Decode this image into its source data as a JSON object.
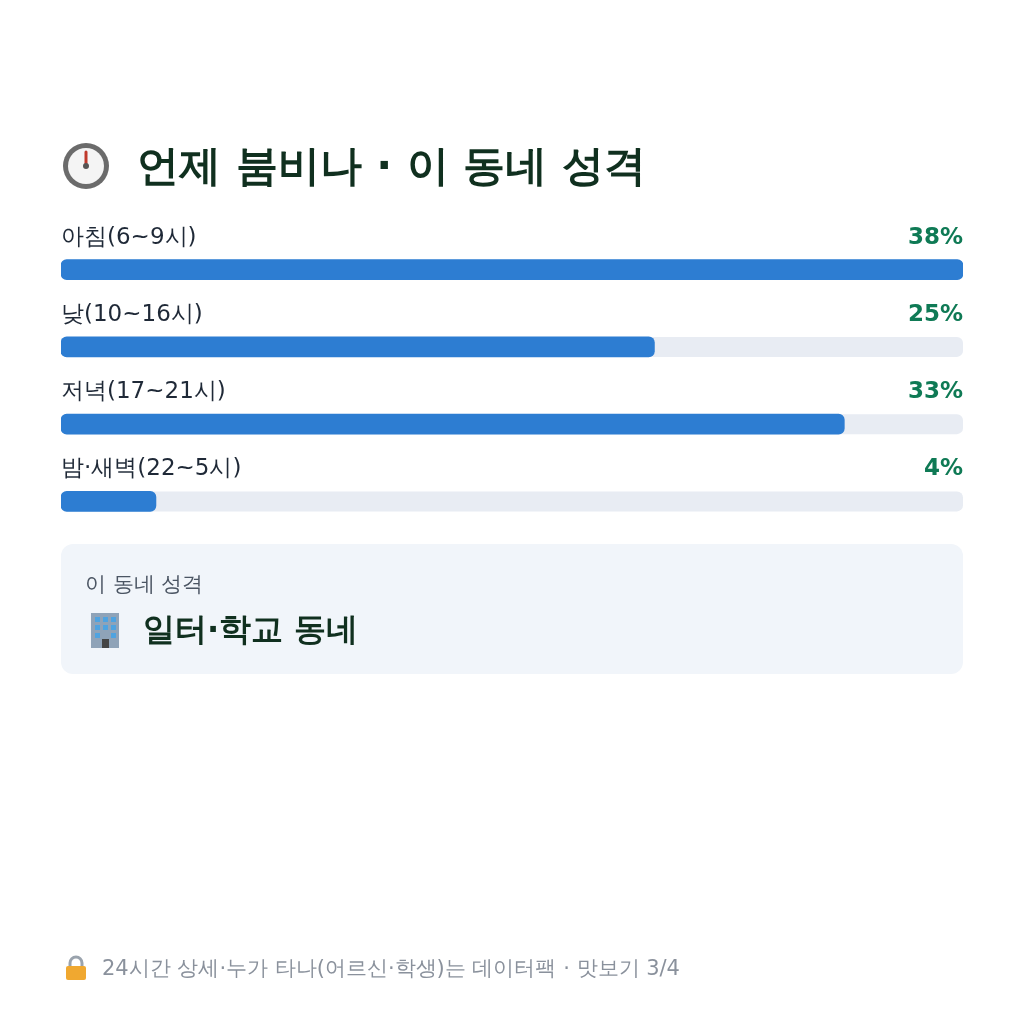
{
  "chart_data": {
    "type": "bar",
    "orientation": "horizontal",
    "title": "언제 붐비나 · 이 동네 성격",
    "categories": [
      "아침(6~9시)",
      "낮(10~16시)",
      "저녁(17~21시)",
      "밤·새벽(22~5시)"
    ],
    "values": [
      38,
      25,
      33,
      4
    ],
    "value_labels": [
      "38%",
      "25%",
      "33%",
      "4%"
    ],
    "color": "#2d7dd2",
    "annotations": [
      "이 동네 성격",
      "일터·학교 동네",
      "24시간 상세·누가 타나(어르신·학생)는 데이터팩 · 맛보기 3/4"
    ]
  }
}
